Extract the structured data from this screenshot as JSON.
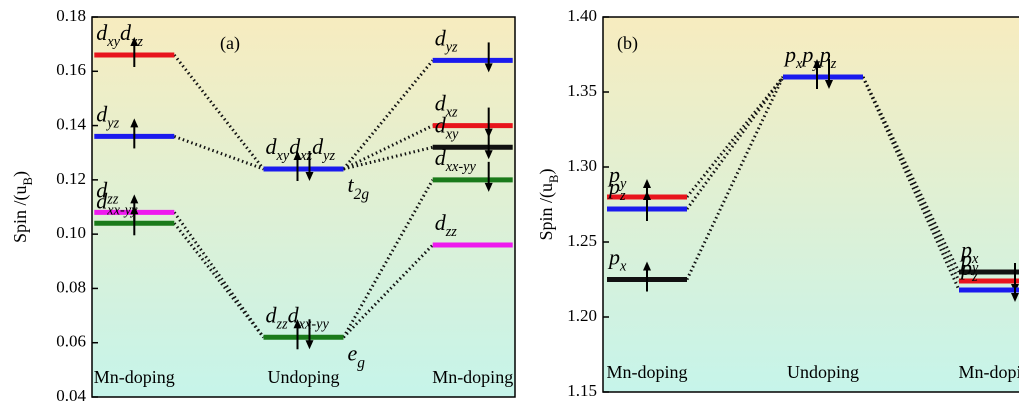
{
  "chart_data": [
    {
      "type": "level",
      "panel_label": "(a)",
      "ylabel": {
        "text": "Spin /(u",
        "sub": "B",
        "tail": ")"
      },
      "ylim": [
        0.04,
        0.18
      ],
      "yticks": [
        0.04,
        0.06,
        0.08,
        {
          "value": 0.1,
          "label": "0.10"
        },
        0.12,
        0.14,
        0.16,
        0.18
      ],
      "columns": [
        "Mn-doping",
        "Undoping",
        "Mn-doping"
      ],
      "levels": [
        {
          "column": 0,
          "value": 0.166,
          "color": "#e8141c",
          "spin": "up",
          "label": [
            {
              "text": "d",
              "sub": "xy"
            },
            {
              "text": "d",
              "sub": "xz"
            }
          ]
        },
        {
          "column": 0,
          "value": 0.136,
          "color": "#1a1aee",
          "spin": "up",
          "label": [
            {
              "text": "d",
              "sub": "yz"
            }
          ]
        },
        {
          "column": 0,
          "value": 0.108,
          "color": "#ee1aee",
          "spin": "up",
          "label": [
            {
              "text": "d",
              "sub": "zz"
            }
          ]
        },
        {
          "column": 0,
          "value": 0.104,
          "color": "#1a7a1a",
          "spin": "up",
          "label": [
            {
              "text": "d",
              "sub": "xx-yy"
            }
          ]
        },
        {
          "column": 1,
          "value": 0.124,
          "color": "#1a1aee",
          "spin": "pair",
          "label": [
            {
              "text": "d",
              "sub": "xy"
            },
            {
              "text": "d",
              "sub": "xz"
            },
            {
              "text": "d",
              "sub": "yz"
            }
          ],
          "group_label": {
            "text": "t",
            "sub": "2g"
          }
        },
        {
          "column": 1,
          "value": 0.062,
          "color": "#1a7a1a",
          "spin": "pair",
          "label": [
            {
              "text": "d",
              "sub": "zz"
            },
            {
              "text": "d",
              "sub": "xx-yy"
            }
          ],
          "group_label": {
            "text": "e",
            "sub": "g"
          }
        },
        {
          "column": 2,
          "value": 0.164,
          "color": "#1a1aee",
          "spin": "down",
          "label": [
            {
              "text": "d",
              "sub": "yz"
            }
          ]
        },
        {
          "column": 2,
          "value": 0.14,
          "color": "#e8141c",
          "spin": "down",
          "label": [
            {
              "text": "d",
              "sub": "xz"
            }
          ]
        },
        {
          "column": 2,
          "value": 0.132,
          "color": "#111111",
          "spin": "down",
          "label": [
            {
              "text": "d",
              "sub": "xy"
            }
          ]
        },
        {
          "column": 2,
          "value": 0.12,
          "color": "#1a7a1a",
          "spin": "down",
          "label": [
            {
              "text": "d",
              "sub": "xx-yy"
            }
          ]
        },
        {
          "column": 2,
          "value": 0.096,
          "color": "#ee1aee",
          "spin": "none",
          "label": [
            {
              "text": "d",
              "sub": "zz"
            }
          ]
        }
      ],
      "connections": [
        [
          0,
          4
        ],
        [
          1,
          4
        ],
        [
          4,
          6
        ],
        [
          4,
          7
        ],
        [
          4,
          8
        ],
        [
          2,
          5
        ],
        [
          3,
          5
        ],
        [
          5,
          9
        ],
        [
          5,
          10
        ]
      ]
    },
    {
      "type": "level",
      "panel_label": "(b)",
      "ylabel": {
        "text": "Spin /(u",
        "sub": "B",
        "tail": ")"
      },
      "ylim": [
        1.15,
        1.4
      ],
      "yticks": [
        1.15,
        {
          "value": 1.2,
          "label": "1.20"
        },
        1.25,
        {
          "value": 1.3,
          "label": "1.30"
        },
        1.35,
        {
          "value": 1.4,
          "label": "1.40"
        }
      ],
      "columns": [
        "Mn-doping",
        "Undoping",
        "Mn-doping"
      ],
      "levels": [
        {
          "column": 0,
          "value": 1.28,
          "color": "#e8141c",
          "spin": "up",
          "label": [
            {
              "text": "p",
              "sub": "y"
            }
          ]
        },
        {
          "column": 0,
          "value": 1.272,
          "color": "#1a1aee",
          "spin": "up",
          "label": [
            {
              "text": "p",
              "sub": "z"
            }
          ]
        },
        {
          "column": 0,
          "value": 1.225,
          "color": "#111111",
          "spin": "up",
          "label": [
            {
              "text": "p",
              "sub": "x"
            }
          ]
        },
        {
          "column": 1,
          "value": 1.36,
          "color": "#1a1aee",
          "spin": "pair",
          "label": [
            {
              "text": "p",
              "sub": "x"
            },
            {
              "text": "p",
              "sub": "y"
            },
            {
              "text": "p",
              "sub": "z"
            }
          ]
        },
        {
          "column": 2,
          "value": 1.23,
          "color": "#111111",
          "spin": "none",
          "label": [
            {
              "text": "p",
              "sub": "x"
            }
          ]
        },
        {
          "column": 2,
          "value": 1.224,
          "color": "#e8141c",
          "spin": "down",
          "label": [
            {
              "text": "p",
              "sub": "y"
            }
          ]
        },
        {
          "column": 2,
          "value": 1.218,
          "color": "#1a1aee",
          "spin": "down",
          "label": [
            {
              "text": "p",
              "sub": "z"
            }
          ]
        }
      ],
      "connections": [
        [
          0,
          3
        ],
        [
          1,
          3
        ],
        [
          2,
          3
        ],
        [
          3,
          4
        ],
        [
          3,
          5
        ],
        [
          3,
          6
        ]
      ]
    }
  ]
}
